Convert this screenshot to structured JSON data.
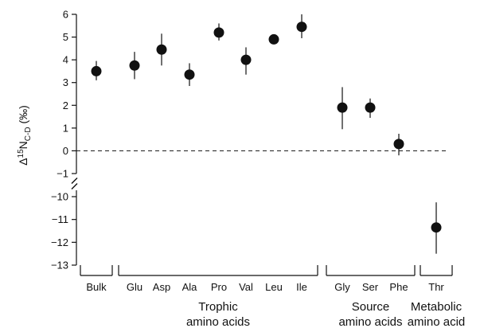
{
  "chart_data": {
    "type": "scatter",
    "title": "",
    "xlabel": "",
    "ylabel": {
      "prefix": "Δ",
      "superscript": "15",
      "main": "N",
      "subscript": "C-D",
      "suffix": " (‰)"
    },
    "error_bars": true,
    "broken_y_axis": true,
    "reference_line": {
      "y": 0,
      "style": "dashed"
    },
    "upper_ylim": [
      -1,
      6
    ],
    "lower_ylim": [
      -13,
      -10
    ],
    "y_ticks": [
      6,
      5,
      4,
      3,
      2,
      1,
      0,
      -1,
      -10,
      -11,
      -12,
      -13
    ],
    "categories": [
      "Bulk",
      "Glu",
      "Asp",
      "Ala",
      "Pro",
      "Val",
      "Leu",
      "Ile",
      "Gly",
      "Ser",
      "Phe",
      "Thr"
    ],
    "points": [
      {
        "category": "Bulk",
        "y": 3.5,
        "err_low": 3.1,
        "err_high": 3.95
      },
      {
        "category": "Glu",
        "y": 3.75,
        "err_low": 3.15,
        "err_high": 4.35
      },
      {
        "category": "Asp",
        "y": 4.45,
        "err_low": 3.75,
        "err_high": 5.15
      },
      {
        "category": "Ala",
        "y": 3.35,
        "err_low": 2.85,
        "err_high": 3.85
      },
      {
        "category": "Pro",
        "y": 5.2,
        "err_low": 4.85,
        "err_high": 5.6
      },
      {
        "category": "Val",
        "y": 4.0,
        "err_low": 3.35,
        "err_high": 4.55
      },
      {
        "category": "Leu",
        "y": 4.9,
        "err_low": 4.75,
        "err_high": 5.05
      },
      {
        "category": "Ile",
        "y": 5.45,
        "err_low": 4.95,
        "err_high": 6.0
      },
      {
        "category": "Gly",
        "y": 1.9,
        "err_low": 0.95,
        "err_high": 2.8
      },
      {
        "category": "Ser",
        "y": 1.9,
        "err_low": 1.45,
        "err_high": 2.3
      },
      {
        "category": "Phe",
        "y": 0.3,
        "err_low": -0.2,
        "err_high": 0.75
      },
      {
        "category": "Thr",
        "y": -11.35,
        "err_low": -12.5,
        "err_high": -10.25
      }
    ],
    "groups": [
      {
        "name": "",
        "lines": [],
        "categories": [
          "Bulk"
        ]
      },
      {
        "name": "Trophic amino acids",
        "lines": [
          "Trophic",
          "amino acids"
        ],
        "categories": [
          "Glu",
          "Asp",
          "Ala",
          "Pro",
          "Val",
          "Leu",
          "Ile"
        ]
      },
      {
        "name": "Source amino acids",
        "lines": [
          "Source",
          "amino acids"
        ],
        "categories": [
          "Gly",
          "Ser",
          "Phe"
        ]
      },
      {
        "name": "Metabolic amino acid",
        "lines": [
          "Metabolic",
          "amino acid"
        ],
        "categories": [
          "Thr"
        ]
      }
    ],
    "colors": {
      "marker": "#111111",
      "axis": "#111111"
    }
  }
}
